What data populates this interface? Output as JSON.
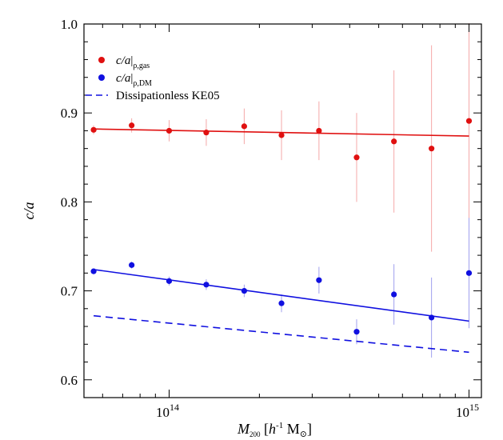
{
  "chart_data": {
    "type": "scatter",
    "xlabel": "M200 [h-1 M⊙]",
    "ylabel": "c/a",
    "xscale": "log",
    "xlim": [
      52000000000000.0,
      1100000000000000.0
    ],
    "ylim": [
      0.58,
      1.0
    ],
    "x_ticks": [
      {
        "value": 100000000000000.0,
        "base": "10",
        "exp": "14"
      },
      {
        "value": 1000000000000000.0,
        "base": "10",
        "exp": "15"
      }
    ],
    "y_ticks": [
      0.6,
      0.7,
      0.8,
      0.9,
      1.0
    ],
    "y_tick_labels": [
      "0.6",
      "0.7",
      "0.8",
      "0.9",
      "1.0"
    ],
    "legend": {
      "position": "top-left",
      "entries": [
        {
          "main": "c/a",
          "sub": "ρ,gas",
          "marker": "dot",
          "color": "#e01010"
        },
        {
          "main": "c/a",
          "sub": "ρ,DM",
          "marker": "dot",
          "color": "#1010e0"
        },
        {
          "text": "Dissipationless KE05",
          "marker": "dashed-line",
          "color": "#1010e0"
        }
      ]
    },
    "series": [
      {
        "color": "#e01010",
        "errorbar_color": "#f4a8a8",
        "points": [
          {
            "x": 56000000000000.0,
            "y": 0.881,
            "err": 0.005
          },
          {
            "x": 75000000000000.0,
            "y": 0.886,
            "err": 0.008
          },
          {
            "x": 100000000000000.0,
            "y": 0.88,
            "err": 0.012
          },
          {
            "x": 133000000000000.0,
            "y": 0.878,
            "err": 0.015
          },
          {
            "x": 178000000000000.0,
            "y": 0.885,
            "err": 0.02
          },
          {
            "x": 237000000000000.0,
            "y": 0.875,
            "err": 0.028
          },
          {
            "x": 316000000000000.0,
            "y": 0.88,
            "err": 0.033
          },
          {
            "x": 422000000000000.0,
            "y": 0.85,
            "err": 0.05
          },
          {
            "x": 562000000000000.0,
            "y": 0.868,
            "err": 0.08
          },
          {
            "x": 750000000000000.0,
            "y": 0.86,
            "err": 0.116
          },
          {
            "x": 1000000000000000.0,
            "y": 0.891,
            "err": 0.11
          }
        ],
        "fit": {
          "x": [
            56000000000000.0,
            1000000000000000.0
          ],
          "y": [
            0.882,
            0.874
          ],
          "style": "solid"
        }
      },
      {
        "color": "#1010e0",
        "errorbar_color": "#a0a0ee",
        "points": [
          {
            "x": 56000000000000.0,
            "y": 0.722,
            "err": 0.003
          },
          {
            "x": 75000000000000.0,
            "y": 0.729,
            "err": 0.004
          },
          {
            "x": 100000000000000.0,
            "y": 0.711,
            "err": 0.005
          },
          {
            "x": 133000000000000.0,
            "y": 0.707,
            "err": 0.006
          },
          {
            "x": 178000000000000.0,
            "y": 0.7,
            "err": 0.007
          },
          {
            "x": 237000000000000.0,
            "y": 0.686,
            "err": 0.01
          },
          {
            "x": 316000000000000.0,
            "y": 0.712,
            "err": 0.015
          },
          {
            "x": 422000000000000.0,
            "y": 0.654,
            "err": 0.014
          },
          {
            "x": 562000000000000.0,
            "y": 0.696,
            "err": 0.034
          },
          {
            "x": 750000000000000.0,
            "y": 0.67,
            "err": 0.045
          },
          {
            "x": 1000000000000000.0,
            "y": 0.72,
            "err": 0.062
          }
        ],
        "fit": {
          "x": [
            56000000000000.0,
            1000000000000000.0
          ],
          "y": [
            0.724,
            0.666
          ],
          "style": "solid"
        }
      },
      {
        "name": "Dissipationless KE05",
        "color": "#1010e0",
        "line": {
          "x": [
            56000000000000.0,
            1000000000000000.0
          ],
          "y": [
            0.672,
            0.631
          ],
          "style": "dashed"
        }
      }
    ]
  }
}
